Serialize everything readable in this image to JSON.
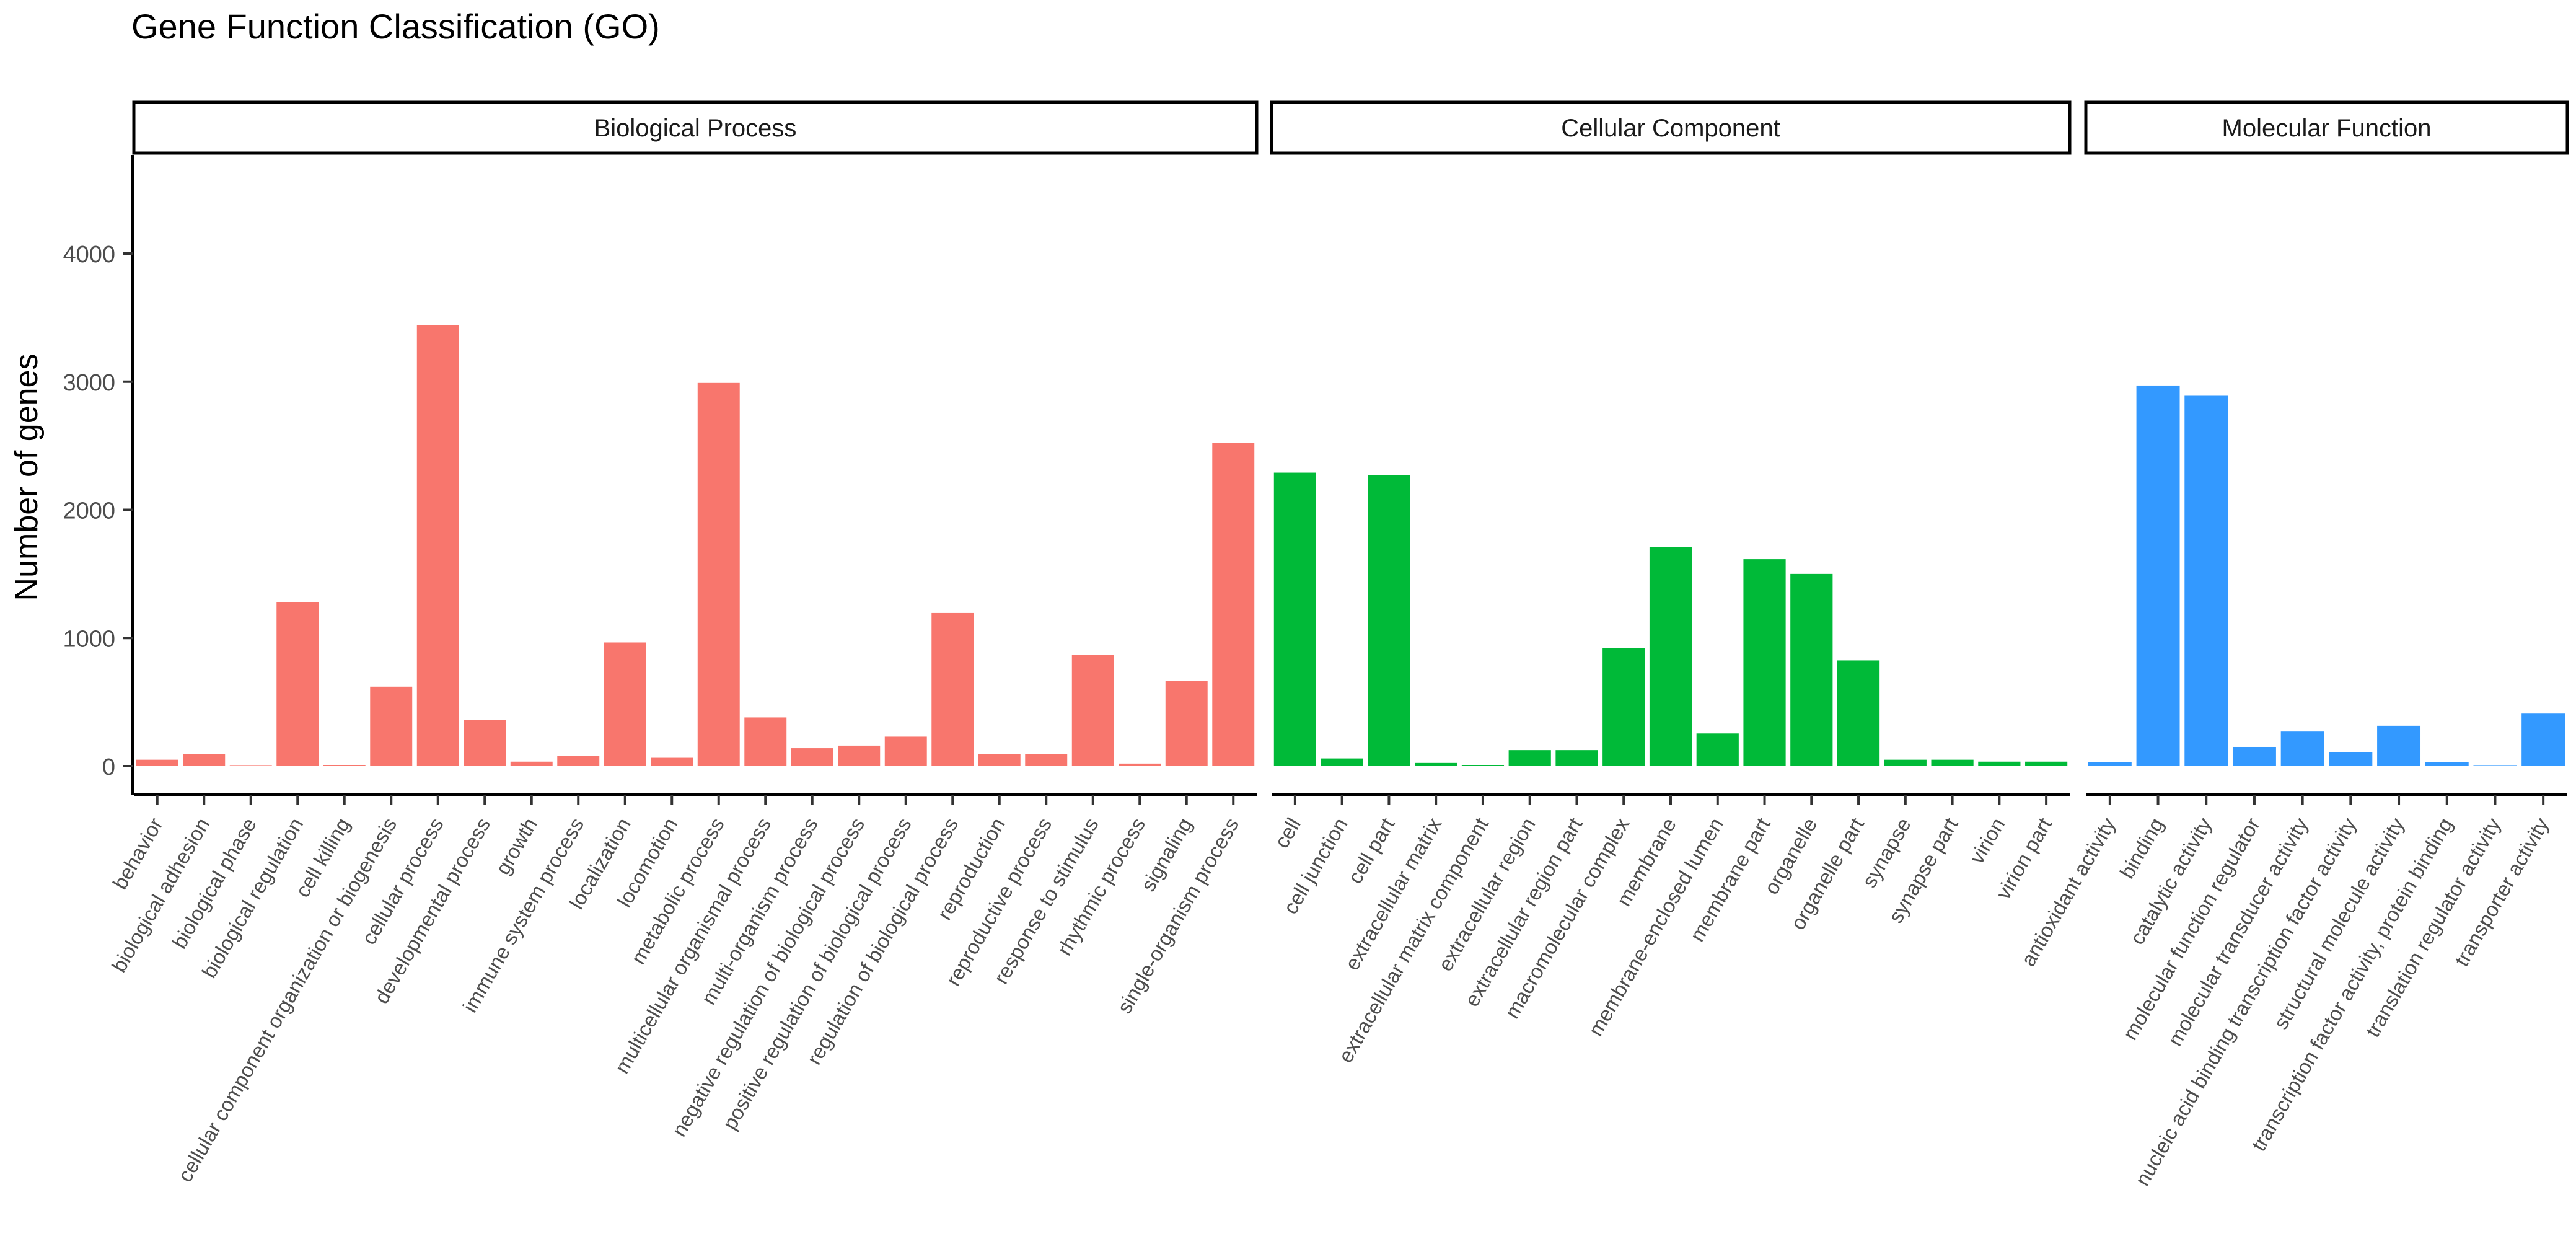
{
  "chart_data": {
    "type": "bar",
    "title": "Gene Function Classification (GO)",
    "xlabel": "",
    "ylabel": "Number of genes",
    "ylim": [
      -250,
      4800
    ],
    "yticks": [
      0,
      1000,
      2000,
      3000,
      4000
    ],
    "grid": false,
    "legend": "none",
    "panels": [
      {
        "name": "Biological Process",
        "color": "#F8766D",
        "categories": [
          "behavior",
          "biological adhesion",
          "biological phase",
          "biological regulation",
          "cell killing",
          "cellular component organization or biogenesis",
          "cellular process",
          "developmental process",
          "growth",
          "immune system process",
          "localization",
          "locomotion",
          "metabolic process",
          "multicellular organismal process",
          "multi-organism process",
          "negative regulation of biological process",
          "positive regulation of biological process",
          "regulation of biological process",
          "reproduction",
          "reproductive process",
          "response to stimulus",
          "rhythmic process",
          "signaling",
          "single-organism process"
        ],
        "values": [
          50,
          95,
          3,
          1280,
          8,
          620,
          3440,
          360,
          35,
          80,
          965,
          65,
          2990,
          380,
          140,
          160,
          230,
          1195,
          95,
          95,
          870,
          20,
          665,
          2520
        ]
      },
      {
        "name": "Cellular Component",
        "color": "#00BA38",
        "categories": [
          "cell",
          "cell junction",
          "cell part",
          "extracellular matrix",
          "extracellular matrix component",
          "extracellular region",
          "extracellular region part",
          "macromolecular complex",
          "membrane",
          "membrane-enclosed lumen",
          "membrane part",
          "organelle",
          "organelle part",
          "synapse",
          "synapse part",
          "virion",
          "virion part"
        ],
        "values": [
          2290,
          60,
          2270,
          25,
          8,
          125,
          125,
          920,
          1710,
          255,
          1615,
          1500,
          825,
          50,
          50,
          35,
          35
        ]
      },
      {
        "name": "Molecular Function",
        "color": "#3399FF",
        "categories": [
          "antioxidant activity",
          "binding",
          "catalytic activity",
          "molecular function regulator",
          "molecular transducer activity",
          "nucleic acid binding transcription factor activity",
          "structural molecule activity",
          "transcription factor activity, protein binding",
          "translation regulator activity",
          "transporter activity"
        ],
        "values": [
          30,
          2970,
          2890,
          150,
          270,
          110,
          315,
          30,
          3,
          410
        ]
      }
    ]
  }
}
